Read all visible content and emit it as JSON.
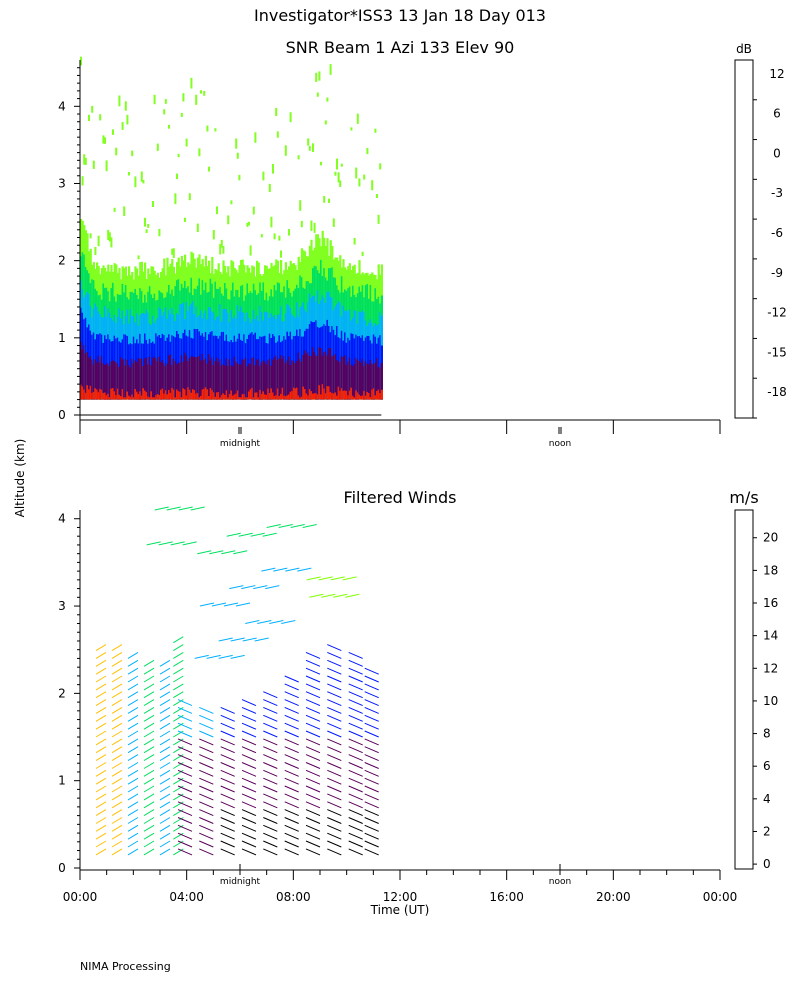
{
  "header": {
    "title": "Investigator*ISS3  13 Jan 18 Day 013",
    "y_axis_label": "Altitude (km)",
    "x_axis_label": "Time (UT)",
    "footer": "NIMA Processing"
  },
  "chart_data": [
    {
      "type": "heatmap",
      "title": "SNR Beam 1 Azi 133 Elev 90",
      "xlabel": "",
      "ylabel": "Altitude (km)",
      "xlim": [
        0,
        24
      ],
      "ylim": [
        0,
        4.6
      ],
      "y_ticks": [
        "0",
        "1",
        "2",
        "3",
        "4"
      ],
      "x_markers": [
        "midnight",
        "noon"
      ],
      "x_marker_hours": [
        6,
        18
      ],
      "data_end_hour": 11.3,
      "colorbar": {
        "unit": "dB",
        "labels": [
          "12",
          "6",
          "0",
          "-3",
          "-6",
          "-9",
          "-12",
          "-15",
          "-18"
        ],
        "colors": [
          "#ffc000",
          "#ff8a00",
          "#ff2000",
          "#5a005a",
          "#6a00b0",
          "#0018ff",
          "#00b0ff",
          "#00e060",
          "#80ff20"
        ]
      },
      "profile": [
        {
          "hour": 0.0,
          "top_km": 2.5
        },
        {
          "hour": 0.5,
          "top_km": 1.95
        },
        {
          "hour": 1.0,
          "top_km": 1.9
        },
        {
          "hour": 2.0,
          "top_km": 1.85
        },
        {
          "hour": 3.0,
          "top_km": 1.9
        },
        {
          "hour": 4.0,
          "top_km": 2.0
        },
        {
          "hour": 5.0,
          "top_km": 1.95
        },
        {
          "hour": 6.0,
          "top_km": 1.9
        },
        {
          "hour": 7.0,
          "top_km": 1.9
        },
        {
          "hour": 8.0,
          "top_km": 1.95
        },
        {
          "hour": 9.0,
          "top_km": 2.3
        },
        {
          "hour": 10.0,
          "top_km": 1.9
        },
        {
          "hour": 11.3,
          "top_km": 1.85
        }
      ],
      "layers_km": [
        {
          "level": "-18",
          "bottom": 0.2,
          "top": 1.9
        },
        {
          "level": "-15",
          "bottom": 0.2,
          "top": 1.6
        },
        {
          "level": "-12",
          "bottom": 0.2,
          "top": 1.3
        },
        {
          "level": "-9",
          "bottom": 0.2,
          "top": 1.0
        },
        {
          "level": "-3",
          "bottom": 0.2,
          "top": 0.7
        },
        {
          "level": "0",
          "bottom": 0.2,
          "top": 0.28
        }
      ]
    },
    {
      "type": "scatter",
      "title": "Filtered Winds",
      "xlabel": "Time (UT)",
      "ylabel": "Altitude (km)",
      "xlim": [
        0,
        24
      ],
      "ylim": [
        0,
        4.1
      ],
      "x_ticks": [
        "00:00",
        "04:00",
        "08:00",
        "12:00",
        "16:00",
        "20:00",
        "00:00"
      ],
      "y_ticks": [
        "0",
        "1",
        "2",
        "3",
        "4"
      ],
      "x_markers": [
        "midnight",
        "noon"
      ],
      "x_marker_hours": [
        6,
        18
      ],
      "colorbar": {
        "unit": "m/s",
        "labels": [
          "20",
          "18",
          "16",
          "14",
          "12",
          "10",
          "8",
          "6",
          "4",
          "2",
          "0"
        ],
        "colors": [
          "#ff0000",
          "#e00000",
          "#ff5000",
          "#ff8a00",
          "#ffc000",
          "#80ff00",
          "#00e060",
          "#00b0ff",
          "#0018ff",
          "#5a005a",
          "#000000"
        ]
      },
      "wind_profiles": [
        {
          "hour": 0.6,
          "speed_ms": 13,
          "top_km": 2.5
        },
        {
          "hour": 1.2,
          "speed_ms": 12,
          "top_km": 2.55
        },
        {
          "hour": 1.8,
          "speed_ms": 7,
          "top_km": 2.45
        },
        {
          "hour": 2.4,
          "speed_ms": 8,
          "top_km": 2.35
        },
        {
          "hour": 3.0,
          "speed_ms": 7,
          "top_km": 2.35
        },
        {
          "hour": 3.5,
          "speed_ms": 9,
          "top_km": 2.6
        },
        {
          "hour": 4.2,
          "speed_ms": 3,
          "top_km": 1.9
        },
        {
          "hour": 5.0,
          "speed_ms": 3,
          "top_km": 1.85
        },
        {
          "hour": 5.8,
          "speed_ms": 2,
          "top_km": 1.85
        },
        {
          "hour": 6.6,
          "speed_ms": 2,
          "top_km": 1.95
        },
        {
          "hour": 7.4,
          "speed_ms": 2,
          "top_km": 2.0
        },
        {
          "hour": 8.2,
          "speed_ms": 2,
          "top_km": 2.2
        },
        {
          "hour": 9.0,
          "speed_ms": 2,
          "top_km": 2.4
        },
        {
          "hour": 9.8,
          "speed_ms": 2,
          "top_km": 2.5
        },
        {
          "hour": 10.6,
          "speed_ms": 2,
          "top_km": 2.45
        },
        {
          "hour": 11.2,
          "speed_ms": 2,
          "top_km": 2.3
        }
      ],
      "upper_winds": [
        {
          "hour": 4.3,
          "alt_km": 2.4,
          "speed_ms": 7
        },
        {
          "hour": 5.2,
          "alt_km": 2.6,
          "speed_ms": 7
        },
        {
          "hour": 6.2,
          "alt_km": 2.8,
          "speed_ms": 7
        },
        {
          "hour": 4.5,
          "alt_km": 3.0,
          "speed_ms": 7
        },
        {
          "hour": 5.6,
          "alt_km": 3.2,
          "speed_ms": 7
        },
        {
          "hour": 6.8,
          "alt_km": 3.4,
          "speed_ms": 7
        },
        {
          "hour": 4.4,
          "alt_km": 3.6,
          "speed_ms": 8
        },
        {
          "hour": 5.5,
          "alt_km": 3.8,
          "speed_ms": 8
        },
        {
          "hour": 7.0,
          "alt_km": 3.9,
          "speed_ms": 8
        },
        {
          "hour": 8.5,
          "alt_km": 3.3,
          "speed_ms": 10
        },
        {
          "hour": 8.6,
          "alt_km": 3.1,
          "speed_ms": 10
        },
        {
          "hour": 2.8,
          "alt_km": 4.1,
          "speed_ms": 9
        },
        {
          "hour": 2.5,
          "alt_km": 3.7,
          "speed_ms": 9
        }
      ]
    }
  ]
}
